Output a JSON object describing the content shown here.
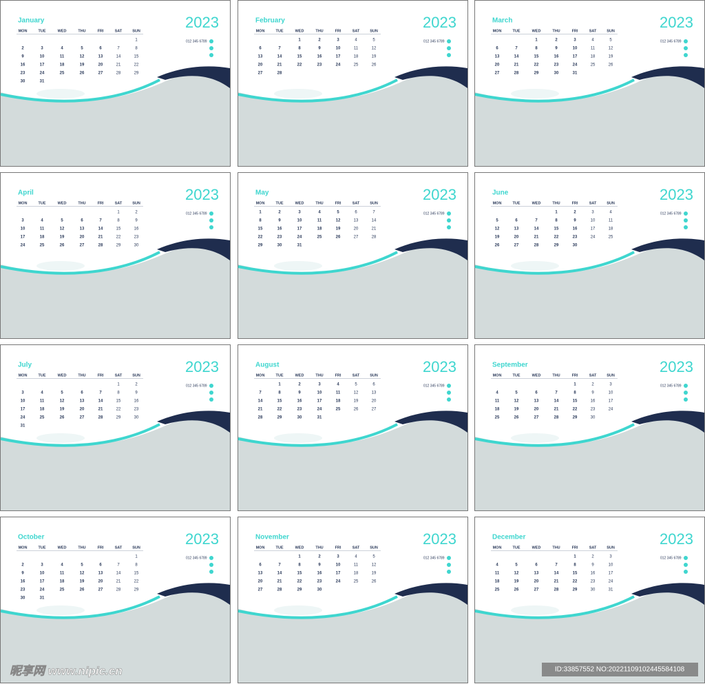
{
  "weekdays": [
    "MON",
    "TUE",
    "WED",
    "THU",
    "FRI",
    "SAT",
    "SUN"
  ],
  "contact": "012 345 6789",
  "months": [
    {
      "name": "January",
      "year": "2023",
      "weeks": [
        [
          null,
          null,
          null,
          null,
          null,
          null,
          1
        ],
        [
          2,
          3,
          4,
          5,
          6,
          7,
          8
        ],
        [
          9,
          10,
          11,
          12,
          13,
          14,
          15
        ],
        [
          16,
          17,
          18,
          19,
          20,
          21,
          22
        ],
        [
          23,
          24,
          25,
          26,
          27,
          28,
          29
        ],
        [
          30,
          31
        ]
      ]
    },
    {
      "name": "February",
      "year": "2023",
      "weeks": [
        [
          null,
          null,
          1,
          2,
          3,
          4,
          5
        ],
        [
          6,
          7,
          8,
          9,
          10,
          11,
          12
        ],
        [
          13,
          14,
          15,
          16,
          17,
          18,
          19
        ],
        [
          20,
          21,
          22,
          23,
          24,
          25,
          26
        ],
        [
          27,
          28
        ]
      ]
    },
    {
      "name": "March",
      "year": "2023",
      "weeks": [
        [
          null,
          null,
          1,
          2,
          3,
          4,
          5
        ],
        [
          6,
          7,
          8,
          9,
          10,
          11,
          12
        ],
        [
          13,
          14,
          15,
          16,
          17,
          18,
          19
        ],
        [
          20,
          21,
          22,
          23,
          24,
          25,
          26
        ],
        [
          27,
          28,
          29,
          30,
          31
        ]
      ]
    },
    {
      "name": "April",
      "year": "2023",
      "weeks": [
        [
          null,
          null,
          null,
          null,
          null,
          1,
          2
        ],
        [
          3,
          4,
          5,
          6,
          7,
          8,
          9
        ],
        [
          10,
          11,
          12,
          13,
          14,
          15,
          16
        ],
        [
          17,
          18,
          19,
          20,
          21,
          22,
          23
        ],
        [
          24,
          25,
          26,
          27,
          28,
          29,
          30
        ]
      ]
    },
    {
      "name": "May",
      "year": "2023",
      "weeks": [
        [
          1,
          2,
          3,
          4,
          5,
          6,
          7
        ],
        [
          8,
          9,
          10,
          11,
          12,
          13,
          14
        ],
        [
          15,
          16,
          17,
          18,
          19,
          20,
          21
        ],
        [
          22,
          23,
          24,
          25,
          26,
          27,
          28
        ],
        [
          29,
          30,
          31
        ]
      ]
    },
    {
      "name": "June",
      "year": "2023",
      "weeks": [
        [
          null,
          null,
          null,
          1,
          2,
          3,
          4
        ],
        [
          5,
          6,
          7,
          8,
          9,
          10,
          11
        ],
        [
          12,
          13,
          14,
          15,
          16,
          17,
          18
        ],
        [
          19,
          20,
          21,
          22,
          23,
          24,
          25
        ],
        [
          26,
          27,
          28,
          29,
          30
        ]
      ]
    },
    {
      "name": "July",
      "year": "2023",
      "weeks": [
        [
          null,
          null,
          null,
          null,
          null,
          1,
          2
        ],
        [
          3,
          4,
          5,
          6,
          7,
          8,
          9
        ],
        [
          10,
          11,
          12,
          13,
          14,
          15,
          16
        ],
        [
          17,
          18,
          19,
          20,
          21,
          22,
          23
        ],
        [
          24,
          25,
          26,
          27,
          28,
          29,
          30
        ],
        [
          31
        ]
      ]
    },
    {
      "name": "August",
      "year": "2023",
      "weeks": [
        [
          null,
          1,
          2,
          3,
          4,
          5,
          6
        ],
        [
          7,
          8,
          9,
          10,
          11,
          12,
          13
        ],
        [
          14,
          15,
          16,
          17,
          18,
          19,
          20
        ],
        [
          21,
          22,
          23,
          24,
          25,
          26,
          27
        ],
        [
          28,
          29,
          30,
          31
        ]
      ]
    },
    {
      "name": "September",
      "year": "2023",
      "weeks": [
        [
          null,
          null,
          null,
          null,
          1,
          2,
          3
        ],
        [
          4,
          5,
          6,
          7,
          8,
          9,
          10
        ],
        [
          11,
          12,
          13,
          14,
          15,
          16,
          17
        ],
        [
          18,
          19,
          20,
          21,
          22,
          23,
          24
        ],
        [
          25,
          26,
          27,
          28,
          29,
          30
        ]
      ]
    },
    {
      "name": "October",
      "year": "2023",
      "weeks": [
        [
          null,
          null,
          null,
          null,
          null,
          null,
          1
        ],
        [
          2,
          3,
          4,
          5,
          6,
          7,
          8
        ],
        [
          9,
          10,
          11,
          12,
          13,
          14,
          15
        ],
        [
          16,
          17,
          18,
          19,
          20,
          21,
          22
        ],
        [
          23,
          24,
          25,
          26,
          27,
          28,
          29
        ],
        [
          30,
          31
        ]
      ]
    },
    {
      "name": "November",
      "year": "2023",
      "weeks": [
        [
          null,
          null,
          1,
          2,
          3,
          4,
          5
        ],
        [
          6,
          7,
          8,
          9,
          10,
          11,
          12
        ],
        [
          13,
          14,
          15,
          16,
          17,
          18,
          19
        ],
        [
          20,
          21,
          22,
          23,
          24,
          25,
          26
        ],
        [
          27,
          28,
          29,
          30
        ]
      ]
    },
    {
      "name": "December",
      "year": "2023",
      "weeks": [
        [
          null,
          null,
          null,
          null,
          1,
          2,
          3
        ],
        [
          4,
          5,
          6,
          7,
          8,
          9,
          10
        ],
        [
          11,
          12,
          13,
          14,
          15,
          16,
          17
        ],
        [
          18,
          19,
          20,
          21,
          22,
          23,
          24
        ],
        [
          25,
          26,
          27,
          28,
          29,
          30,
          31
        ]
      ]
    }
  ],
  "watermark": {
    "site": "昵享网 www.nipic.cn",
    "id": "ID:33857552 NO:20221109102445584108"
  }
}
